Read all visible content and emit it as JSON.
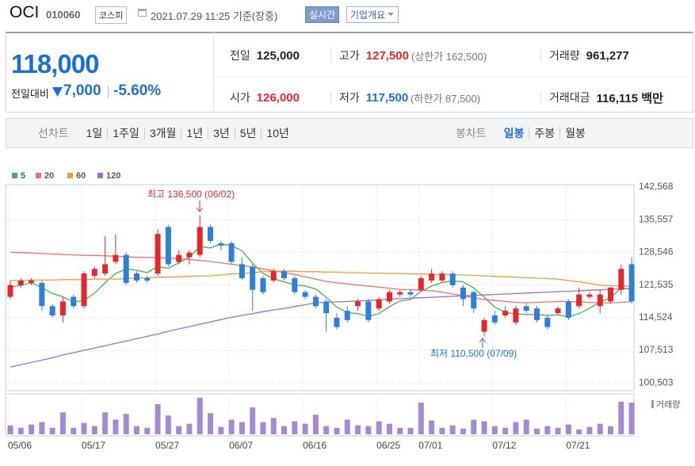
{
  "header": {
    "name": "OCI",
    "code": "010060",
    "market": "코스피",
    "datetime": "2021.07.29 11:25 기준(장중)",
    "realtime": "실시간",
    "company_info": "기업개요"
  },
  "quote": {
    "price": "118,000",
    "change_label": "전일대비",
    "change": "7,000",
    "change_rate": "-5.60%",
    "color": "#1f6fd1"
  },
  "stats": [
    {
      "label": "전일",
      "value": "125,000",
      "color": "#222222"
    },
    {
      "label": "고가",
      "value": "127,500",
      "note": "(상한가 162,500)",
      "color": "#e3272f"
    },
    {
      "label": "거래량",
      "value": "961,277",
      "color": "#222222"
    },
    {
      "label": "시가",
      "value": "126,000",
      "color": "#e3272f"
    },
    {
      "label": "저가",
      "value": "117,500",
      "note": "(하한가 87,500)",
      "color": "#1f6fd1"
    },
    {
      "label": "거래대금",
      "value": "116,115 백만",
      "color": "#222222"
    }
  ],
  "tabs": {
    "line_label": "선차트",
    "line": [
      "1일",
      "1주일",
      "3개월",
      "1년",
      "3년",
      "5년",
      "10년"
    ],
    "candle_label": "봉차트",
    "candle": [
      "일봉",
      "주봉",
      "월봉"
    ]
  },
  "chart_data": {
    "type": "candlestick",
    "categories": [
      "05/06",
      null,
      null,
      null,
      null,
      null,
      null,
      "05/17",
      null,
      null,
      null,
      null,
      null,
      null,
      "05/27",
      null,
      null,
      null,
      null,
      null,
      null,
      "06/07",
      null,
      null,
      null,
      null,
      null,
      null,
      "06/16",
      null,
      null,
      null,
      null,
      null,
      null,
      "06/25",
      null,
      null,
      null,
      "07/01",
      null,
      null,
      null,
      null,
      null,
      null,
      "07/12",
      null,
      null,
      null,
      null,
      null,
      null,
      "07/21",
      null,
      null,
      null,
      null,
      null,
      null
    ],
    "open": [
      119000,
      121500,
      122000,
      122000,
      117000,
      115000,
      119000,
      117000,
      123500,
      124000,
      126500,
      128000,
      124000,
      123000,
      124000,
      134000,
      126500,
      127500,
      128000,
      134000,
      130500,
      130500,
      126000,
      125500,
      123000,
      122500,
      124500,
      123000,
      120000,
      119000,
      118000,
      114500,
      116000,
      117000,
      118000,
      116500,
      118000,
      119500,
      120000,
      120500,
      122500,
      122500,
      124000,
      121000,
      120000,
      111500,
      115000,
      115000,
      113500,
      117000,
      116500,
      114500,
      115500,
      118000,
      117000,
      119000,
      117000,
      118000,
      120500,
      126000
    ],
    "high": [
      122500,
      123000,
      123000,
      122500,
      117500,
      119000,
      119500,
      124500,
      125500,
      132000,
      132500,
      128500,
      124500,
      123500,
      133500,
      134500,
      129000,
      129000,
      136500,
      134500,
      131000,
      131000,
      127500,
      126000,
      123500,
      125000,
      125000,
      123500,
      120500,
      119500,
      118500,
      115500,
      117000,
      118500,
      118500,
      119000,
      120500,
      120500,
      120500,
      123500,
      125000,
      124500,
      124500,
      121500,
      120500,
      114500,
      116000,
      117000,
      117000,
      117500,
      117000,
      115000,
      117000,
      118500,
      121000,
      120000,
      120500,
      121000,
      126000,
      127500
    ],
    "low": [
      118500,
      121000,
      121500,
      116000,
      114500,
      113500,
      116500,
      116500,
      123000,
      123500,
      126000,
      121500,
      122000,
      122000,
      123500,
      125500,
      126000,
      126000,
      127500,
      130500,
      129000,
      126000,
      122500,
      116000,
      119500,
      122000,
      122500,
      119500,
      118500,
      116500,
      111500,
      112000,
      113500,
      116000,
      113500,
      116000,
      117500,
      119000,
      119000,
      120000,
      122000,
      122000,
      121000,
      117000,
      115500,
      110500,
      113000,
      114500,
      113000,
      115500,
      113500,
      112000,
      115000,
      114000,
      116500,
      118500,
      115500,
      117500,
      119500,
      117500
    ],
    "close": [
      121500,
      122500,
      122500,
      117000,
      115000,
      118000,
      117000,
      124000,
      125000,
      126000,
      128000,
      122000,
      122500,
      122500,
      132500,
      126000,
      128000,
      128500,
      134000,
      131000,
      130000,
      126500,
      123000,
      120500,
      120000,
      124500,
      123000,
      120000,
      119000,
      117000,
      115500,
      112500,
      114000,
      118000,
      114000,
      118500,
      120000,
      120000,
      119500,
      123000,
      124000,
      124000,
      121500,
      118500,
      116500,
      114000,
      113500,
      116000,
      116500,
      116000,
      114000,
      112500,
      116500,
      114500,
      119500,
      119500,
      119500,
      121000,
      125000,
      118000
    ],
    "up_color": "#e3272f",
    "down_color": "#2f7fd6",
    "ma_series": [
      {
        "name": "5",
        "color": "#45b649",
        "values": [
          121000,
          121500,
          122000,
          121000,
          119700,
          119000,
          117900,
          118200,
          119800,
          122000,
          124000,
          125000,
          124700,
          124200,
          125500,
          125100,
          126300,
          127500,
          129800,
          129500,
          130300,
          130000,
          128900,
          126200,
          124000,
          122900,
          122200,
          121600,
          121300,
          120700,
          118900,
          116800,
          115600,
          115400,
          114800,
          115400,
          116900,
          118100,
          118400,
          120200,
          121300,
          122100,
          122400,
          122200,
          120900,
          118900,
          116800,
          115700,
          115300,
          115200,
          115200,
          115000,
          115100,
          114700,
          115400,
          116500,
          117900,
          118800,
          120900,
          120600
        ]
      },
      {
        "name": "20",
        "color": "#ef6f6f",
        "values": [
          128600,
          128500,
          128400,
          128300,
          128200,
          128100,
          128000,
          127900,
          127900,
          127800,
          127700,
          127600,
          127500,
          127500,
          127400,
          127300,
          127200,
          127000,
          126800,
          126600,
          126300,
          126000,
          125700,
          125400,
          125000,
          124600,
          124200,
          123800,
          123300,
          122800,
          122300,
          122000,
          121800,
          121500,
          121300,
          121100,
          120800,
          120600,
          120500,
          120400,
          120300,
          120000,
          119600,
          119200,
          118800,
          118400,
          118200,
          118000,
          117800,
          117700,
          117800,
          117900,
          118000,
          118000,
          117900,
          117800,
          117700,
          117700,
          117800,
          118000
        ]
      },
      {
        "name": "60",
        "color": "#f39a3a",
        "values": [
          122500,
          122500,
          122600,
          122600,
          122600,
          122700,
          122700,
          122700,
          122800,
          122800,
          122800,
          122900,
          123000,
          123100,
          123200,
          123200,
          123300,
          123400,
          123500,
          123500,
          123700,
          123900,
          124000,
          124200,
          124400,
          124500,
          124500,
          124500,
          124400,
          124400,
          124300,
          124300,
          124200,
          124200,
          124100,
          124100,
          124000,
          124000,
          123900,
          123900,
          123800,
          123800,
          123700,
          123700,
          123600,
          123500,
          123400,
          123300,
          123200,
          123100,
          123000,
          122900,
          122800,
          122500,
          122200,
          121900,
          121500,
          121400,
          121300,
          121300
        ]
      },
      {
        "name": "120",
        "color": "#9b6fd3",
        "values": [
          103900,
          104400,
          104900,
          105400,
          105900,
          106500,
          107000,
          107500,
          108000,
          108500,
          109000,
          109500,
          110000,
          110500,
          111000,
          111600,
          112100,
          112600,
          113100,
          113600,
          114100,
          114600,
          115000,
          115400,
          115800,
          116200,
          116500,
          116900,
          117300,
          117700,
          117800,
          117900,
          118000,
          118100,
          118200,
          118300,
          118500,
          118600,
          118700,
          118800,
          118900,
          119000,
          119100,
          119200,
          119300,
          119400,
          119500,
          119600,
          119700,
          119800,
          119900,
          120000,
          120100,
          120200,
          120300,
          120400,
          120500,
          120600,
          120700,
          120800
        ]
      }
    ],
    "volume": {
      "name": "거래량",
      "color": "#a28bd2",
      "values": [
        271000,
        197000,
        296000,
        370000,
        197000,
        666000,
        197000,
        345000,
        247000,
        666000,
        444000,
        616000,
        247000,
        197000,
        912000,
        567000,
        247000,
        320000,
        1109000,
        641000,
        222000,
        444000,
        370000,
        813000,
        370000,
        493000,
        247000,
        394000,
        320000,
        592000,
        247000,
        197000,
        444000,
        271000,
        247000,
        394000,
        320000,
        197000,
        197000,
        961000,
        419000,
        197000,
        271000,
        173000,
        444000,
        394000,
        247000,
        197000,
        370000,
        444000,
        173000,
        247000,
        197000,
        296000,
        148000,
        222000,
        320000,
        247000,
        986000,
        961277
      ]
    },
    "ylim": [
      99000,
      143600
    ],
    "yticks": [
      {
        "value": 142568,
        "label": "142,568"
      },
      {
        "value": 135557,
        "label": "135,557"
      },
      {
        "value": 128546,
        "label": "128,546"
      },
      {
        "value": 121535,
        "label": "121,535"
      },
      {
        "value": 114524,
        "label": "114,524"
      },
      {
        "value": 107513,
        "label": "107,513"
      },
      {
        "value": 100503,
        "label": "100,503"
      }
    ],
    "y2lim": [
      0,
      1200000
    ],
    "grid": true,
    "annotations": [
      "최고 136,500 (06/02)",
      "최저 110,500 (07/09)"
    ]
  }
}
